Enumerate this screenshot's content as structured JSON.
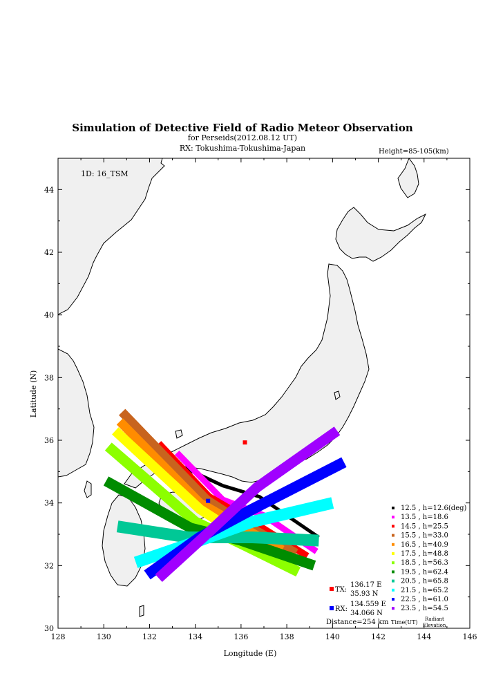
{
  "title": "Simulation of Detective Field of Radio Meteor Observation",
  "subtitle1": "for Perseids(2012.08.12 UT)",
  "subtitle2": "RX: Tokushima-Tokushima-Japan",
  "height_label": "Height=85-105(km)",
  "id_label": "1D: 16_TSM",
  "xlabel": "Longitude (E)",
  "ylabel": "Latitude (N)",
  "x_ticks": [
    "128",
    "130",
    "132",
    "134",
    "136",
    "138",
    "140",
    "142",
    "144",
    "146"
  ],
  "y_ticks": [
    "30",
    "32",
    "34",
    "36",
    "38",
    "40",
    "42",
    "44"
  ],
  "xlim": [
    128,
    146
  ],
  "ylim": [
    30,
    45
  ],
  "tx": {
    "label": "TX:",
    "lon_text": "136.17 E",
    "lat_text": "35.93 N",
    "lon": 136.17,
    "lat": 35.93,
    "color": "#ff0000"
  },
  "rx": {
    "label": "RX:",
    "lon_text": "134.559 E",
    "lat_text": "34.066 N",
    "lon": 134.559,
    "lat": 34.066,
    "color": "#0000ff"
  },
  "distance_text": "Distance=254 km",
  "time_label": "Time(UT)",
  "radiant_label_1": "Radiant",
  "radiant_label_2": "Elevation",
  "legend": [
    {
      "text": "12.5 ,  h=12.6(deg)",
      "color": "#000000"
    },
    {
      "text": "13.5 ,  h=18.6",
      "color": "#ff00ff"
    },
    {
      "text": "14.5 ,  h=25.5",
      "color": "#ff0000"
    },
    {
      "text": "15.5 ,  h=33.0",
      "color": "#c8641e"
    },
    {
      "text": "16.5 ,  h=40.9",
      "color": "#ff8c00"
    },
    {
      "text": "17.5 ,  h=48.8",
      "color": "#ffff00"
    },
    {
      "text": "18.5 ,  h=56.3",
      "color": "#8cff00"
    },
    {
      "text": "19.5 ,  h=62.4",
      "color": "#008c00"
    },
    {
      "text": "20.5 ,  h=65.8",
      "color": "#00c896"
    },
    {
      "text": "21.5 ,  h=65.2",
      "color": "#00ffff"
    },
    {
      "text": "22.5 ,  h=61.0",
      "color": "#0000ff"
    },
    {
      "text": "23.5 ,  h=54.5",
      "color": "#a000ff"
    }
  ],
  "chart_data": {
    "type": "scatter",
    "xlabel": "Longitude (E)",
    "ylabel": "Latitude (N)",
    "xlim": [
      128,
      146
    ],
    "ylim": [
      30,
      45
    ],
    "series": [
      {
        "name": "12.5",
        "color": "#000000",
        "path": [
          [
            133.3,
            35.2
          ],
          [
            135.2,
            34.55
          ],
          [
            136.8,
            34.2
          ],
          [
            139.4,
            32.9
          ]
        ]
      },
      {
        "name": "13.5",
        "color": "#ff00ff",
        "path": [
          [
            133.2,
            35.6
          ],
          [
            135.2,
            34.1
          ],
          [
            137.0,
            33.6
          ],
          [
            139.3,
            32.45
          ]
        ]
      },
      {
        "name": "14.5",
        "color": "#ff0000",
        "path": [
          [
            132.4,
            35.9
          ],
          [
            134.6,
            34.2
          ],
          [
            136.5,
            33.4
          ],
          [
            138.9,
            32.3
          ]
        ]
      },
      {
        "name": "15.5",
        "color": "#c8641e",
        "path": [
          [
            130.8,
            36.9
          ],
          [
            134.5,
            34.1
          ],
          [
            136.2,
            33.3
          ],
          [
            138.4,
            32.4
          ]
        ]
      },
      {
        "name": "16.5",
        "color": "#ff8c00",
        "path": [
          [
            130.7,
            36.6
          ],
          [
            134.2,
            34.0
          ],
          [
            136.0,
            33.25
          ],
          [
            137.8,
            32.5
          ]
        ]
      },
      {
        "name": "17.5",
        "color": "#ffff00",
        "path": [
          [
            130.5,
            36.3
          ],
          [
            134.2,
            33.8
          ],
          [
            135.9,
            33.0
          ],
          [
            137.6,
            32.2
          ]
        ]
      },
      {
        "name": "18.5",
        "color": "#8cff00",
        "path": [
          [
            130.2,
            35.8
          ],
          [
            134.0,
            33.4
          ],
          [
            136.0,
            32.7
          ],
          [
            138.5,
            31.8
          ]
        ]
      },
      {
        "name": "19.5",
        "color": "#008c00",
        "path": [
          [
            130.1,
            34.7
          ],
          [
            133.8,
            33.2
          ],
          [
            136.0,
            32.8
          ],
          [
            139.2,
            32.0
          ]
        ]
      },
      {
        "name": "20.5",
        "color": "#00c896",
        "path": [
          [
            130.6,
            33.25
          ],
          [
            133.7,
            32.9
          ],
          [
            136.5,
            32.9
          ],
          [
            139.4,
            32.8
          ]
        ]
      },
      {
        "name": "21.5",
        "color": "#00ffff",
        "path": [
          [
            131.4,
            32.1
          ],
          [
            134.0,
            32.75
          ],
          [
            136.5,
            33.4
          ],
          [
            140.0,
            34.0
          ]
        ]
      },
      {
        "name": "22.5",
        "color": "#0000ff",
        "path": [
          [
            131.9,
            31.7
          ],
          [
            134.2,
            32.9
          ],
          [
            136.5,
            33.8
          ],
          [
            140.5,
            35.3
          ]
        ]
      },
      {
        "name": "23.5",
        "color": "#a000ff",
        "path": [
          [
            132.4,
            31.6
          ],
          [
            134.5,
            33.0
          ],
          [
            136.7,
            34.5
          ],
          [
            140.2,
            36.3
          ]
        ]
      }
    ]
  }
}
